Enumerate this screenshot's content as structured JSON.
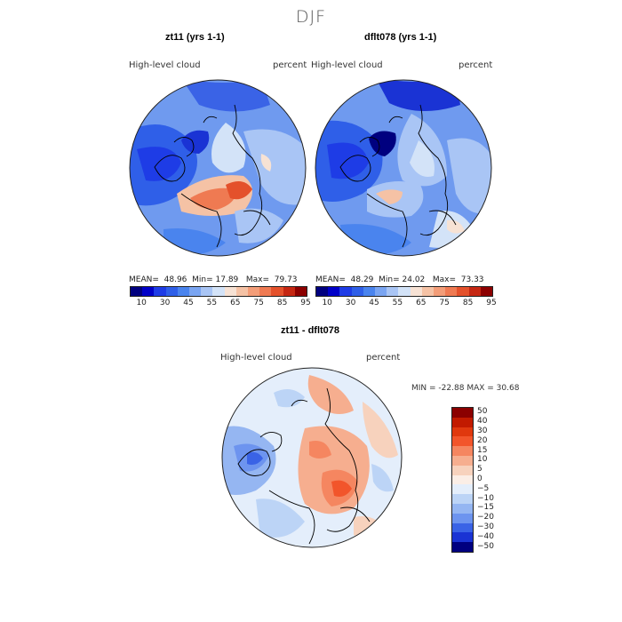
{
  "figure": {
    "title": "DJF"
  },
  "panels": [
    {
      "title": "zt11 (yrs 1-1)",
      "variable": "High-level cloud",
      "units": "percent",
      "stats": {
        "mean": "48.96",
        "min": "17.89",
        "max": "79.73"
      },
      "colorbar_ticks": [
        "10",
        "30",
        "45",
        "55",
        "65",
        "75",
        "85",
        "95"
      ]
    },
    {
      "title": "dflt078 (yrs 1-1)",
      "variable": "High-level cloud",
      "units": "percent",
      "stats": {
        "mean": "48.29",
        "min": "24.02",
        "max": "73.33"
      },
      "colorbar_ticks": [
        "10",
        "30",
        "45",
        "55",
        "65",
        "75",
        "85",
        "95"
      ]
    }
  ],
  "diff_panel": {
    "title": "zt11 - dflt078",
    "variable": "High-level cloud",
    "units": "percent",
    "min_label": "MIN = ",
    "min": "-22.88",
    "max_label": "MAX = ",
    "max": "30.68",
    "colorbar_ticks": [
      "50",
      "40",
      "30",
      "20",
      "15",
      "10",
      "5",
      "0",
      "−5",
      "−10",
      "−15",
      "−20",
      "−30",
      "−40",
      "−50"
    ]
  },
  "labels": {
    "mean": "MEAN=",
    "min": "Min=",
    "max": "Max="
  },
  "colors": {
    "abs_scale": [
      "#00007f",
      "#0000c8",
      "#1e3ce6",
      "#2f5fe8",
      "#4a84ee",
      "#7aa5f2",
      "#a9c5f5",
      "#d3e3f8",
      "#f7e2d4",
      "#f5c2a5",
      "#f39d78",
      "#ef7a52",
      "#e4512b",
      "#c52712",
      "#8c0000"
    ],
    "diff_scale": [
      "#8b0000",
      "#c21a00",
      "#e0380e",
      "#f2552b",
      "#f58660",
      "#f6ae8f",
      "#f7d2bd",
      "#fbeee6",
      "#e4eefb",
      "#bcd4f6",
      "#95b6f2",
      "#6d94ef",
      "#3a63e6",
      "#1a33d4",
      "#00007f"
    ]
  }
}
